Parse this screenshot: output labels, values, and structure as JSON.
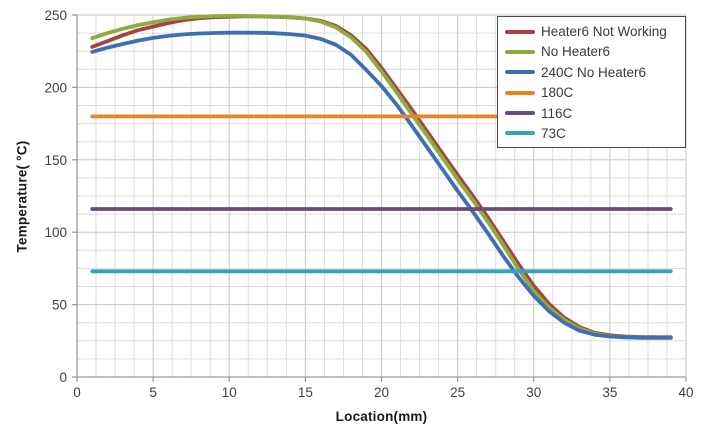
{
  "chart_data": {
    "type": "line",
    "title": "",
    "xlabel": "Location(mm)",
    "ylabel": "Temperature( °C)",
    "xlim": [
      0,
      40
    ],
    "ylim": [
      0,
      250
    ],
    "x_major_ticks": [
      0,
      5,
      10,
      15,
      20,
      25,
      30,
      35,
      40
    ],
    "y_major_ticks": [
      0,
      50,
      100,
      150,
      200,
      250
    ],
    "x_minor_step": 1.25,
    "y_minor_step": 12.5,
    "grid": "major+minor",
    "legend_position": "top-right",
    "x": [
      1,
      2,
      3,
      4,
      5,
      6,
      7,
      8,
      9,
      10,
      11,
      12,
      13,
      14,
      15,
      16,
      17,
      18,
      19,
      20,
      21,
      22,
      23,
      24,
      25,
      26,
      27,
      28,
      29,
      30,
      31,
      32,
      33,
      34,
      35,
      36,
      37,
      38,
      39
    ],
    "series": [
      {
        "name": "Heater6 Not Working",
        "color": "#A8423C",
        "values": [
          228,
          232,
          236,
          239.5,
          242,
          244.5,
          246.5,
          247.8,
          248.5,
          248.8,
          249,
          249,
          248.8,
          248.4,
          247.6,
          246,
          242.5,
          236,
          226.5,
          213.5,
          199,
          184.5,
          169.5,
          154.5,
          139.5,
          125,
          110,
          94,
          78,
          63,
          50.5,
          41,
          34.5,
          30.5,
          28.8,
          28,
          27.6,
          27.5,
          27.5
        ]
      },
      {
        "name": "No Heater6",
        "color": "#8CAC3E",
        "values": [
          234,
          237.5,
          240.5,
          243,
          245,
          246.8,
          248,
          248.8,
          249.2,
          249.4,
          249.4,
          249.2,
          249,
          248.5,
          247.5,
          245.5,
          241.5,
          234.5,
          224.5,
          211,
          196.5,
          181.5,
          166.5,
          151.5,
          136.5,
          122,
          107,
          91,
          74.5,
          59.5,
          48,
          39.5,
          33.5,
          30,
          28.3,
          27.6,
          27.3,
          27.2,
          27.2
        ]
      },
      {
        "name": "240C No Heater6",
        "color": "#3D6FB4",
        "values": [
          224.5,
          227.5,
          230,
          232.3,
          234.2,
          235.6,
          236.6,
          237.2,
          237.6,
          237.8,
          237.8,
          237.7,
          237.4,
          236.8,
          235.8,
          233.5,
          229.5,
          222.5,
          212,
          201,
          188,
          173.5,
          158.5,
          143.5,
          128.5,
          114,
          99,
          83.5,
          69,
          56,
          45.5,
          37.5,
          32,
          29.2,
          28,
          27.4,
          27.1,
          27,
          27
        ]
      },
      {
        "name": "180C",
        "color": "#EA8326",
        "constant": 180
      },
      {
        "name": "116C",
        "color": "#6A4B7D",
        "constant": 116
      },
      {
        "name": "73C",
        "color": "#38A1BA",
        "constant": 73
      }
    ],
    "style": {
      "minor_grid_color": "#dddddd",
      "major_grid_color": "#c6c6c6",
      "axis_color": "#9a9a9a",
      "tick_label_color": "#3f3f3f",
      "line_width": 3.8
    }
  }
}
